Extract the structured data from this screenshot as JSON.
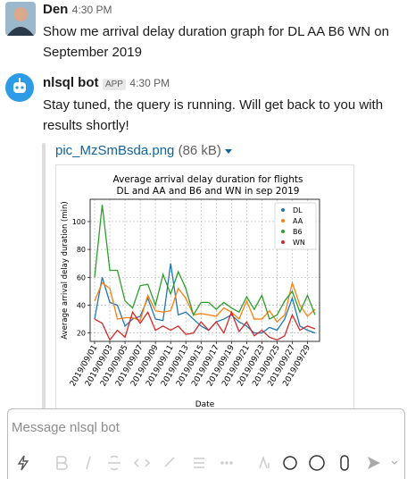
{
  "messages": [
    {
      "author": "Den",
      "time": "4:30 PM",
      "text": "Show me arrival delay duration graph for DL AA B6 WN on September 2019"
    },
    {
      "author": "nlsql bot",
      "badge": "APP",
      "time": "4:30 PM",
      "text": "Stay tuned, the query is running. Will get back to you with results shortly!"
    }
  ],
  "attachment": {
    "filename": "pic_MzSmBsda.png",
    "size": "(86 kB)"
  },
  "chart_data": {
    "type": "line",
    "title": "Average arrival delay duration for flights DL and AA and B6 and WN in sep 2019",
    "x_label": "Date",
    "y_label": "Average arrival delay duration (min)",
    "categories": [
      "2019/09/01",
      null,
      "2019/09/03",
      null,
      "2019/09/05",
      null,
      "2019/09/07",
      null,
      "2019/09/09",
      null,
      "2019/09/11",
      null,
      "2019/09/13",
      null,
      "2019/09/15",
      null,
      "2019/09/17",
      null,
      "2019/09/19",
      null,
      "2019/09/21",
      null,
      "2019/09/23",
      null,
      "2019/09/25",
      null,
      "2019/09/27",
      null,
      "2019/09/29",
      null
    ],
    "series": [
      {
        "name": "DL",
        "color": "#1f77b4",
        "values": [
          30,
          60,
          42,
          40,
          25,
          30,
          32,
          45,
          30,
          29,
          70,
          33,
          35,
          30,
          25,
          22,
          28,
          30,
          33,
          28,
          25,
          20,
          20,
          24,
          22,
          30,
          45,
          25,
          22,
          20
        ]
      },
      {
        "name": "AA",
        "color": "#ff7f0e",
        "values": [
          43,
          56,
          52,
          30,
          31,
          31,
          29,
          47,
          36,
          35,
          36,
          52,
          45,
          33,
          34,
          33,
          32,
          38,
          35,
          30,
          43,
          30,
          30,
          36,
          28,
          33,
          56,
          40,
          32,
          37
        ]
      },
      {
        "name": "B6",
        "color": "#2ca02c",
        "values": [
          60,
          112,
          65,
          65,
          43,
          38,
          54,
          55,
          40,
          62,
          48,
          64,
          52,
          33,
          42,
          42,
          37,
          42,
          38,
          35,
          46,
          37,
          47,
          30,
          33,
          43,
          50,
          35,
          47,
          33
        ]
      },
      {
        "name": "WN",
        "color": "#d62728",
        "values": [
          30,
          27,
          15,
          22,
          17,
          35,
          27,
          35,
          22,
          25,
          22,
          25,
          19,
          20,
          28,
          22,
          28,
          20,
          35,
          21,
          28,
          18,
          22,
          17,
          15,
          18,
          33,
          22,
          25,
          23
        ]
      }
    ],
    "ylim": [
      14,
      116
    ],
    "yticks": [
      20,
      40,
      60,
      80,
      100
    ],
    "grid": true,
    "legend": "upper right"
  },
  "composer": {
    "placeholder": "Message nlsql bot"
  }
}
